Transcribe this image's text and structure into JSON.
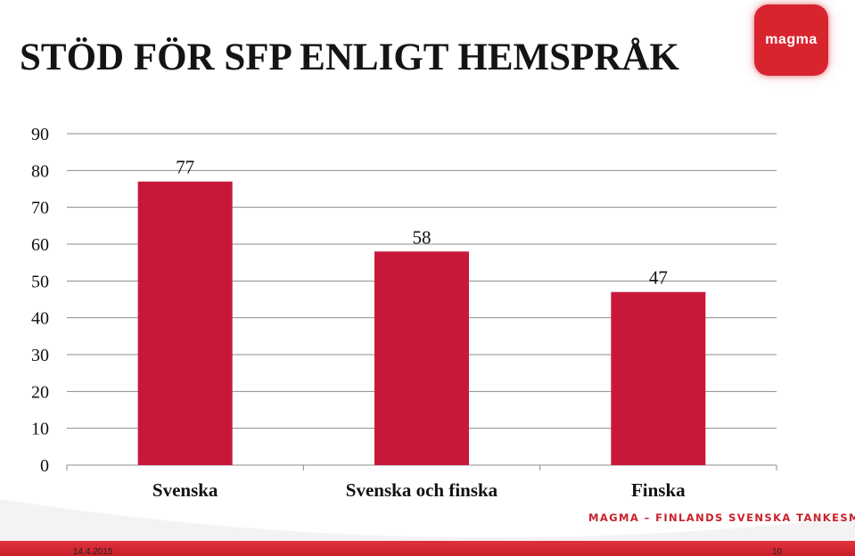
{
  "slide": {
    "title": "STÖD FÖR SFP ENLIGT HEMSPRÅK",
    "logo_text": "magma",
    "org_line": "MAGMA – FINLANDS SVENSKA TANKESMEDJA",
    "footer_date": "14.4.2015",
    "footer_page": "10"
  },
  "colors": {
    "bar": "#c8183a",
    "grid": "#8c8c8c",
    "brand": "#d8242e"
  },
  "chart_data": {
    "type": "bar",
    "title": "",
    "xlabel": "",
    "ylabel": "",
    "categories": [
      "Svenska",
      "Svenska och finska",
      "Finska"
    ],
    "values": [
      77,
      58,
      47
    ],
    "ylim": [
      0,
      90
    ],
    "yticks": [
      0,
      10,
      20,
      30,
      40,
      50,
      60,
      70,
      80,
      90
    ],
    "grid": true,
    "data_labels": true
  }
}
